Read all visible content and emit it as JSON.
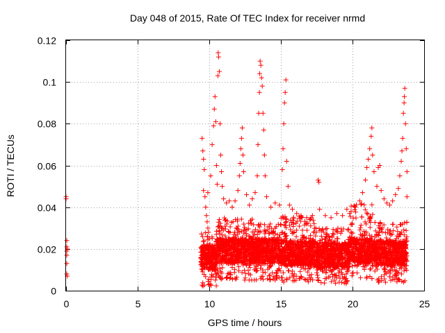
{
  "chart_data": {
    "type": "scatter",
    "title": "Day 048 of 2015, Rate Of TEC Index for receiver nrmd",
    "xlabel": "GPS time / hours",
    "ylabel": "ROTI / TECUs",
    "xlim": [
      0,
      25
    ],
    "ylim": [
      0,
      0.12
    ],
    "x_ticks": [
      "0",
      "5",
      "10",
      "15",
      "20",
      "25"
    ],
    "y_ticks": [
      "0",
      "0.02",
      "0.04",
      "0.06",
      "0.08",
      "0.1",
      "0.12"
    ],
    "grid": true,
    "marker": "+",
    "color": "#ff0000",
    "series": [
      {
        "points": [
          [
            0.0,
            0.045
          ],
          [
            0.0,
            0.044
          ],
          [
            0.05,
            0.024
          ],
          [
            0.05,
            0.021
          ],
          [
            0.05,
            0.019
          ],
          [
            0.05,
            0.017
          ],
          [
            0.05,
            0.013
          ],
          [
            0.05,
            0.008
          ],
          [
            0.08,
            0.007
          ],
          [
            0.08,
            0.02
          ],
          [
            9.5,
            0.073
          ],
          [
            9.55,
            0.067
          ],
          [
            9.6,
            0.063
          ],
          [
            9.65,
            0.058
          ],
          [
            9.6,
            0.048
          ],
          [
            9.7,
            0.045
          ],
          [
            9.75,
            0.04
          ],
          [
            9.8,
            0.036
          ],
          [
            9.85,
            0.033
          ],
          [
            9.9,
            0.03
          ],
          [
            9.95,
            0.028
          ],
          [
            10.0,
            0.025
          ],
          [
            9.9,
            0.047
          ],
          [
            10.1,
            0.055
          ],
          [
            10.2,
            0.07
          ],
          [
            10.3,
            0.079
          ],
          [
            10.35,
            0.087
          ],
          [
            10.4,
            0.093
          ],
          [
            10.45,
            0.081
          ],
          [
            10.5,
            0.06
          ],
          [
            10.55,
            0.051
          ],
          [
            10.6,
            0.103
          ],
          [
            10.62,
            0.114
          ],
          [
            10.65,
            0.112
          ],
          [
            10.7,
            0.105
          ],
          [
            10.75,
            0.08
          ],
          [
            10.8,
            0.065
          ],
          [
            10.85,
            0.057
          ],
          [
            10.9,
            0.05
          ],
          [
            11.0,
            0.044
          ],
          [
            11.2,
            0.042
          ],
          [
            11.4,
            0.043
          ],
          [
            11.6,
            0.04
          ],
          [
            11.8,
            0.043
          ],
          [
            12.0,
            0.048
          ],
          [
            12.1,
            0.055
          ],
          [
            12.15,
            0.061
          ],
          [
            12.2,
            0.068
          ],
          [
            12.25,
            0.073
          ],
          [
            12.3,
            0.078
          ],
          [
            12.35,
            0.065
          ],
          [
            12.4,
            0.057
          ],
          [
            12.6,
            0.046
          ],
          [
            12.8,
            0.041
          ],
          [
            13.0,
            0.044
          ],
          [
            13.2,
            0.047
          ],
          [
            13.35,
            0.055
          ],
          [
            13.4,
            0.07
          ],
          [
            13.45,
            0.085
          ],
          [
            13.5,
            0.095
          ],
          [
            13.52,
            0.104
          ],
          [
            13.55,
            0.11
          ],
          [
            13.6,
            0.108
          ],
          [
            13.65,
            0.102
          ],
          [
            13.7,
            0.098
          ],
          [
            13.75,
            0.085
          ],
          [
            13.8,
            0.077
          ],
          [
            13.85,
            0.065
          ],
          [
            13.9,
            0.055
          ],
          [
            14.0,
            0.045
          ],
          [
            14.3,
            0.04
          ],
          [
            14.6,
            0.042
          ],
          [
            14.9,
            0.041
          ],
          [
            15.1,
            0.058
          ],
          [
            15.15,
            0.068
          ],
          [
            15.2,
            0.08
          ],
          [
            15.25,
            0.09
          ],
          [
            15.3,
            0.095
          ],
          [
            15.35,
            0.101
          ],
          [
            15.4,
            0.062
          ],
          [
            15.5,
            0.05
          ],
          [
            15.6,
            0.041
          ],
          [
            15.8,
            0.039
          ],
          [
            16.1,
            0.037
          ],
          [
            16.4,
            0.036
          ],
          [
            16.8,
            0.035
          ],
          [
            17.2,
            0.036
          ],
          [
            17.6,
            0.053
          ],
          [
            17.65,
            0.052
          ],
          [
            17.7,
            0.039
          ],
          [
            18.1,
            0.036
          ],
          [
            18.5,
            0.035
          ],
          [
            18.9,
            0.037
          ],
          [
            19.3,
            0.036
          ],
          [
            19.6,
            0.039
          ],
          [
            19.9,
            0.038
          ],
          [
            20.2,
            0.04
          ],
          [
            20.5,
            0.043
          ],
          [
            20.7,
            0.047
          ],
          [
            20.9,
            0.053
          ],
          [
            21.0,
            0.059
          ],
          [
            21.1,
            0.063
          ],
          [
            21.2,
            0.068
          ],
          [
            21.3,
            0.074
          ],
          [
            21.35,
            0.078
          ],
          [
            21.4,
            0.065
          ],
          [
            21.5,
            0.057
          ],
          [
            21.7,
            0.05
          ],
          [
            21.8,
            0.059
          ],
          [
            21.9,
            0.06
          ],
          [
            22.0,
            0.048
          ],
          [
            22.2,
            0.044
          ],
          [
            22.4,
            0.042
          ],
          [
            22.6,
            0.041
          ],
          [
            22.8,
            0.043
          ],
          [
            23.0,
            0.046
          ],
          [
            23.2,
            0.049
          ],
          [
            23.3,
            0.055
          ],
          [
            23.4,
            0.062
          ],
          [
            23.45,
            0.067
          ],
          [
            23.5,
            0.073
          ],
          [
            23.55,
            0.085
          ],
          [
            23.6,
            0.09
          ],
          [
            23.62,
            0.093
          ],
          [
            23.65,
            0.097
          ],
          [
            23.7,
            0.08
          ],
          [
            23.75,
            0.068
          ],
          [
            23.8,
            0.057
          ],
          [
            23.8,
            0.045
          ]
        ]
      }
    ],
    "dense_band": [
      {
        "x_range": [
          9.4,
          10.5
        ],
        "y_range": [
          0.002,
          0.028
        ]
      },
      {
        "x_range": [
          10.5,
          13.0
        ],
        "y_range": [
          0.005,
          0.035
        ]
      },
      {
        "x_range": [
          13.0,
          15.0
        ],
        "y_range": [
          0.005,
          0.032
        ]
      },
      {
        "x_range": [
          15.0,
          17.5
        ],
        "y_range": [
          0.004,
          0.036
        ]
      },
      {
        "x_range": [
          17.5,
          19.8
        ],
        "y_range": [
          0.003,
          0.03
        ]
      },
      {
        "x_range": [
          19.8,
          21.5
        ],
        "y_range": [
          0.005,
          0.042
        ]
      },
      {
        "x_range": [
          21.5,
          23.8
        ],
        "y_range": [
          0.004,
          0.033
        ]
      }
    ]
  }
}
